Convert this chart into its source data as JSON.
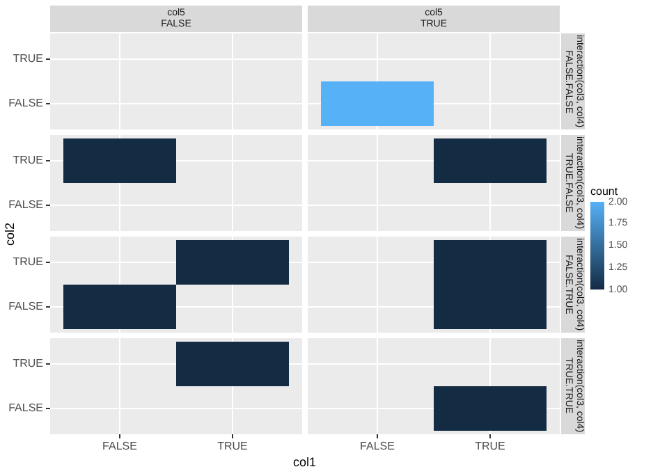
{
  "chart_data": {
    "type": "heatmap",
    "xlabel": "col1",
    "ylabel": "col2",
    "clabel": "count",
    "annotations": [
      "col5\nFALSE",
      "col5\nTRUE",
      "interaction(col3, col4)\nFALSE.FALSE",
      "interaction(col3, col4)\nTRUE.FALSE",
      "interaction(col3, col4)\nFALSE.TRUE",
      "interaction(col3, col4)\nTRUE.TRUE"
    ],
    "categories": [
      "FALSE",
      "TRUE",
      "FALSE",
      "TRUE"
    ],
    "y_categories": [
      "TRUE",
      "FALSE",
      "TRUE",
      "FALSE",
      "TRUE",
      "FALSE",
      "TRUE",
      "FALSE"
    ],
    "cells": [
      [
        null,
        null,
        null,
        null
      ],
      [
        null,
        null,
        2,
        null
      ],
      [
        1,
        null,
        null,
        1
      ],
      [
        null,
        null,
        null,
        null
      ],
      [
        null,
        1,
        null,
        1
      ],
      [
        1,
        null,
        null,
        1
      ],
      [
        null,
        1,
        null,
        null
      ],
      [
        null,
        null,
        null,
        1
      ]
    ],
    "clim": [
      1,
      2
    ],
    "cticks": [
      {
        "value": 1,
        "label": "1.00"
      },
      {
        "value": 1.25,
        "label": "1.25"
      },
      {
        "value": 1.5,
        "label": "1.50"
      },
      {
        "value": 1.75,
        "label": "1.75"
      },
      {
        "value": 2,
        "label": "2.00"
      }
    ],
    "grid": true
  }
}
